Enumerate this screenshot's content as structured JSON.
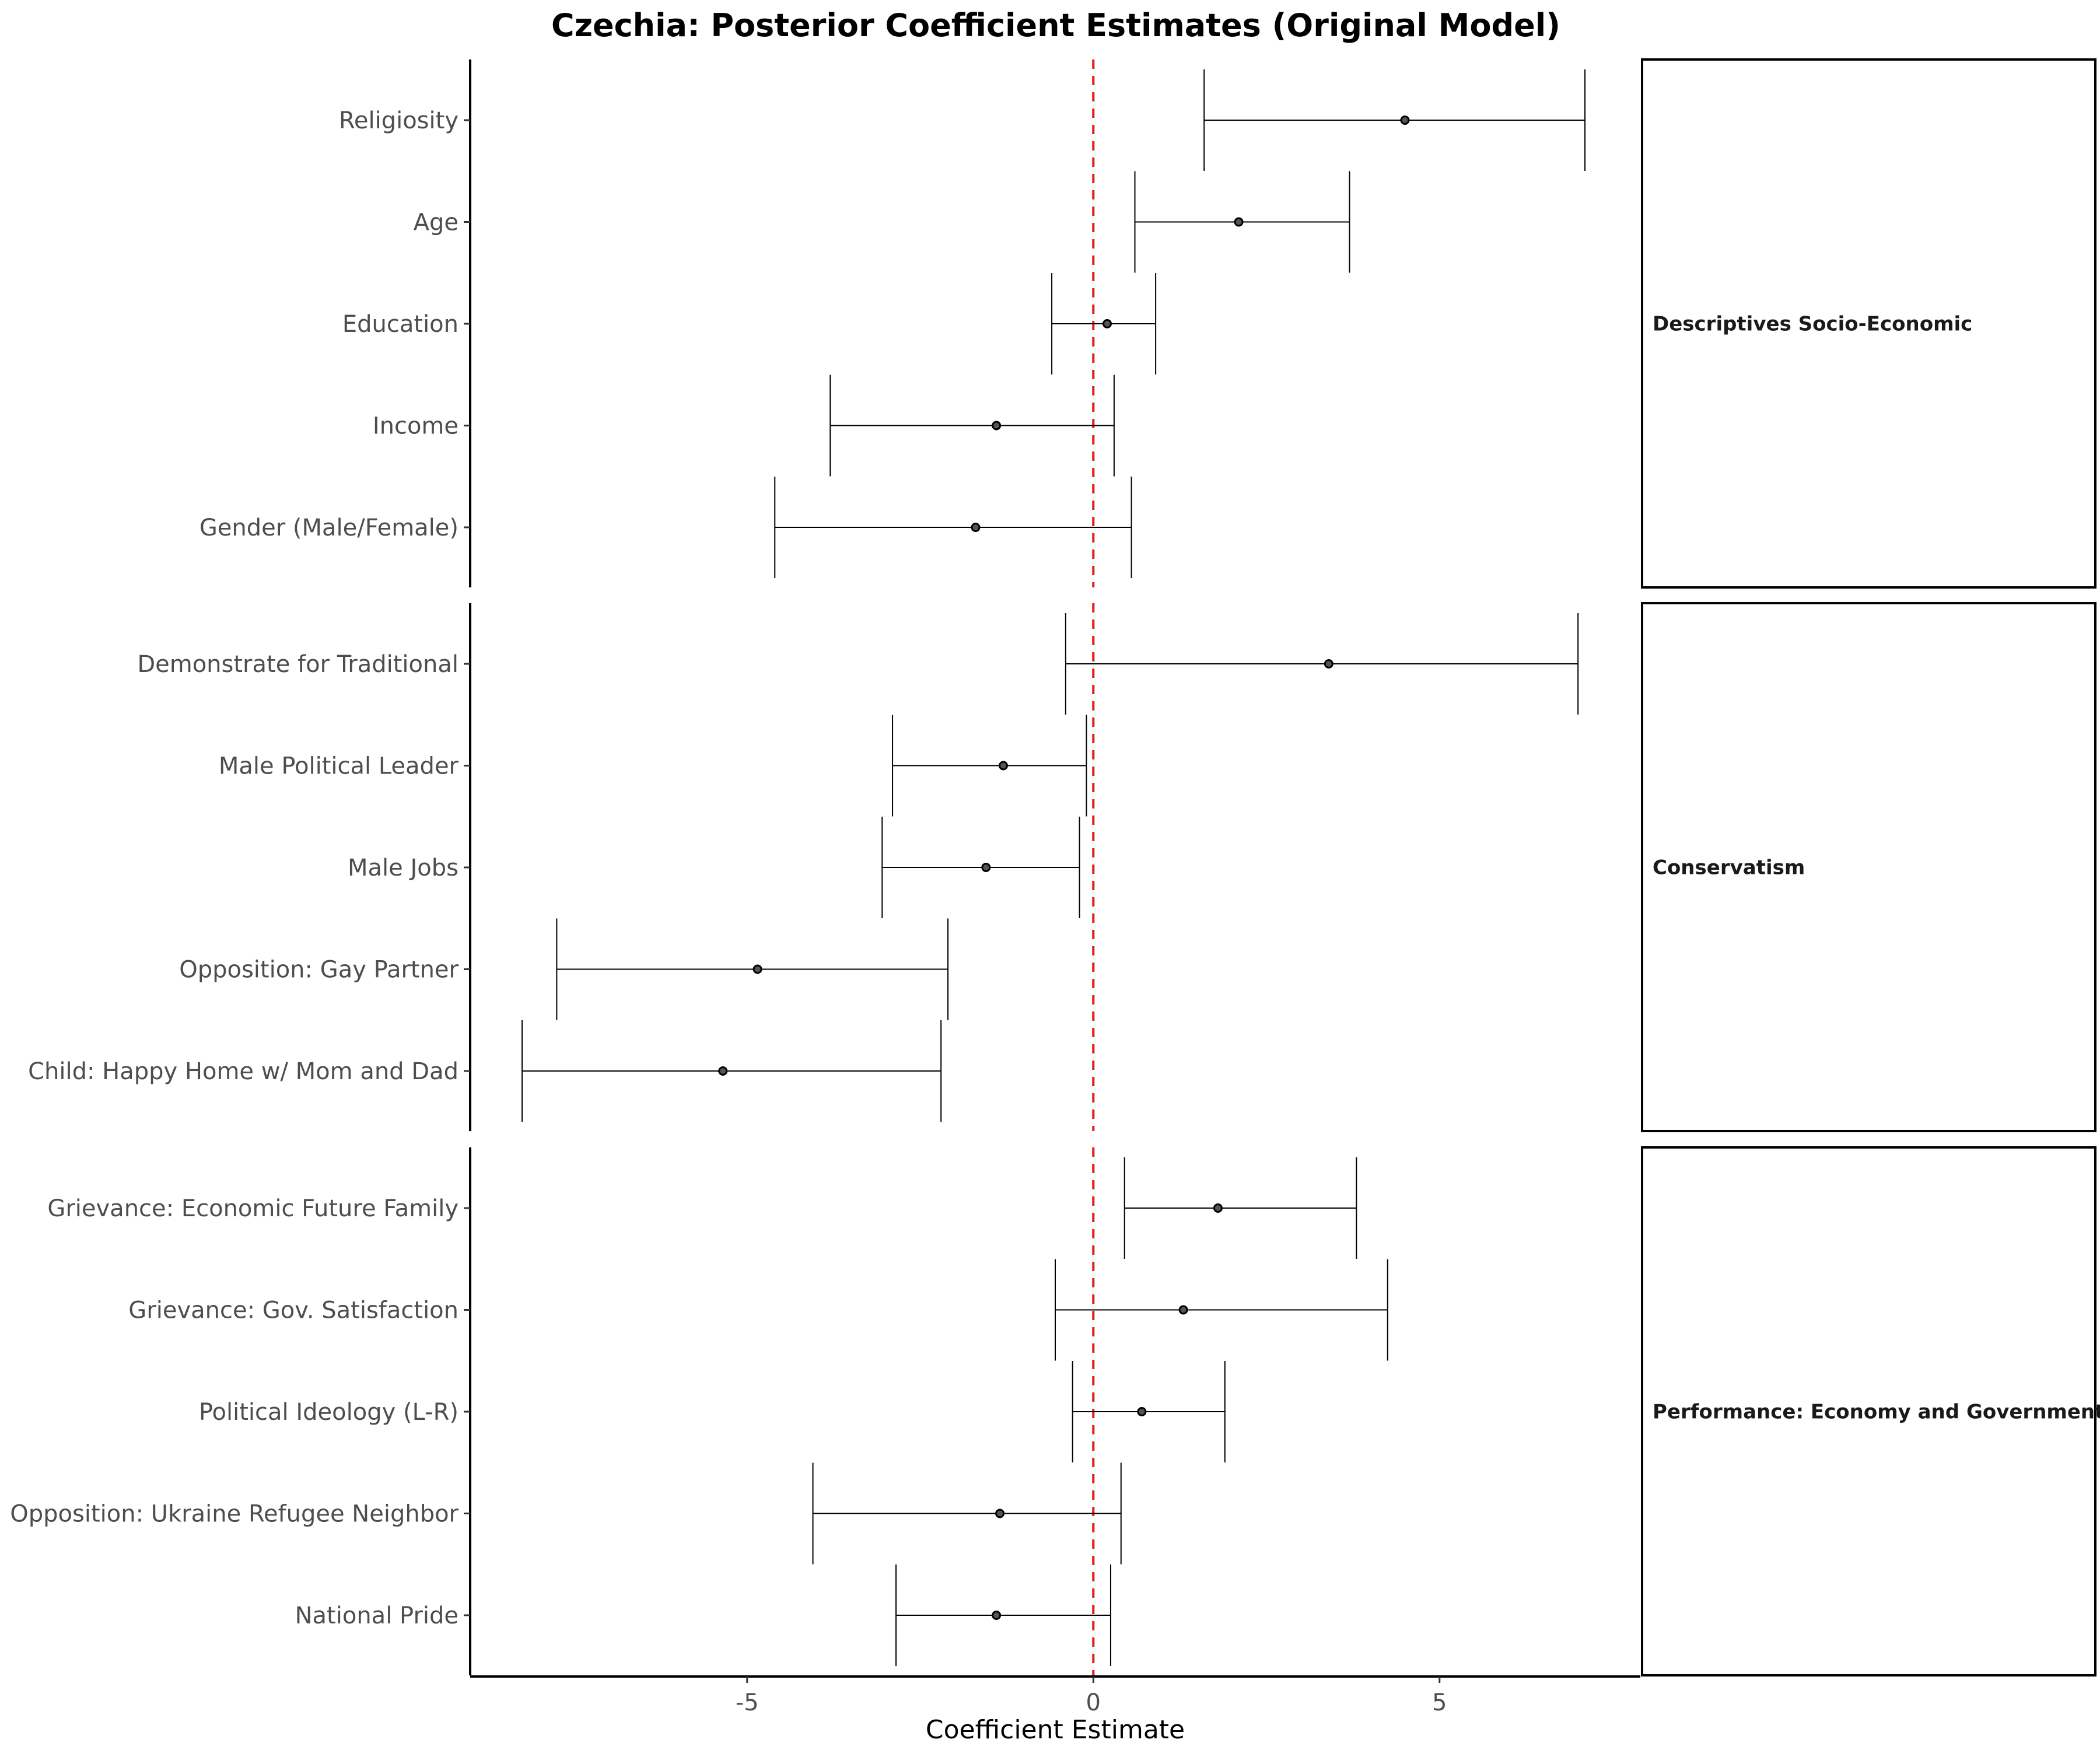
{
  "chart_data": {
    "type": "scatter",
    "subtype": "coefficient-plot",
    "title": "Czechia: Posterior Coefficient Estimates (Original Model)",
    "xlabel": "Coefficient Estimate",
    "ylabel": "",
    "xlim": [
      -9.0,
      7.9
    ],
    "xticks": [
      -5,
      0,
      5
    ],
    "xtick_labels": [
      "-5",
      "0",
      "5"
    ],
    "reference_line": {
      "x": 0,
      "color": "#e41a1c",
      "style": "dashed"
    },
    "grid": false,
    "facets": [
      {
        "name": "Descriptives Socio-Economic",
        "terms": [
          {
            "label": "Religiosity",
            "estimate": 4.5,
            "low": 1.6,
            "high": 7.1
          },
          {
            "label": "Age",
            "estimate": 2.1,
            "low": 0.6,
            "high": 3.7
          },
          {
            "label": "Education",
            "estimate": 0.2,
            "low": -0.6,
            "high": 0.9
          },
          {
            "label": "Income",
            "estimate": -1.4,
            "low": -3.8,
            "high": 0.3
          },
          {
            "label": "Gender (Male/Female)",
            "estimate": -1.7,
            "low": -4.6,
            "high": 0.55
          }
        ]
      },
      {
        "name": "Conservatism",
        "terms": [
          {
            "label": "Demonstrate for Traditional",
            "estimate": 3.4,
            "low": -0.4,
            "high": 7.0
          },
          {
            "label": "Male Political Leader",
            "estimate": -1.3,
            "low": -2.9,
            "high": -0.1
          },
          {
            "label": "Male Jobs",
            "estimate": -1.55,
            "low": -3.05,
            "high": -0.2
          },
          {
            "label": "Opposition: Gay Partner",
            "estimate": -4.85,
            "low": -7.75,
            "high": -2.1
          },
          {
            "label": "Child: Happy Home w/ Mom and Dad",
            "estimate": -5.35,
            "low": -8.25,
            "high": -2.2
          }
        ]
      },
      {
        "name": "Performance: Economy and Government",
        "terms": [
          {
            "label": "Grievance: Economic Future Family",
            "estimate": 1.8,
            "low": 0.45,
            "high": 3.8
          },
          {
            "label": "Grievance: Gov. Satisfaction",
            "estimate": 1.3,
            "low": -0.55,
            "high": 4.25
          },
          {
            "label": "Political Ideology (L-R)",
            "estimate": 0.7,
            "low": -0.3,
            "high": 1.9
          },
          {
            "label": "Opposition: Ukraine Refugee Neighbor",
            "estimate": -1.35,
            "low": -4.05,
            "high": 0.4
          },
          {
            "label": "National Pride",
            "estimate": -1.4,
            "low": -2.85,
            "high": 0.25
          }
        ]
      }
    ]
  }
}
